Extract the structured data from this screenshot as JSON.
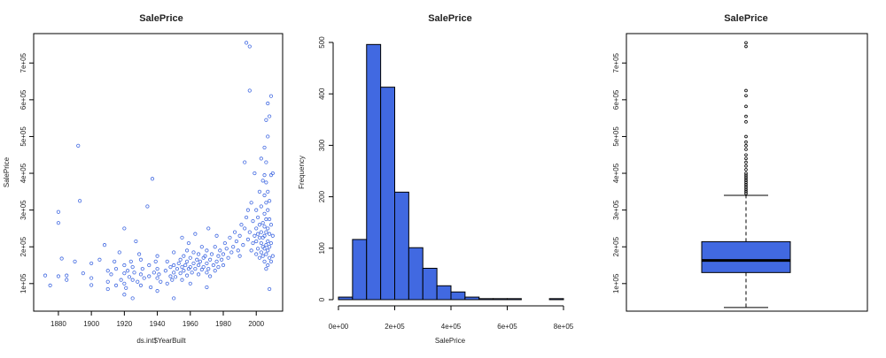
{
  "chart_data": [
    {
      "type": "scatter",
      "title": "SalePrice",
      "xlabel": "ds.int$YearBuilt",
      "ylabel": "SalePrice",
      "xlim": [
        1865,
        2016
      ],
      "ylim": [
        25000,
        780000
      ],
      "x_ticks": [
        1880,
        1900,
        1920,
        1940,
        1960,
        1980,
        2000
      ],
      "x_tick_labels": [
        "1880",
        "1900",
        "1920",
        "1940",
        "1960",
        "1980",
        "2000"
      ],
      "y_ticks": [
        100000,
        200000,
        300000,
        400000,
        500000,
        600000,
        700000
      ],
      "y_tick_labels": [
        "1e+05",
        "2e+05",
        "3e+05",
        "4e+05",
        "5e+05",
        "6e+05",
        "7e+05"
      ],
      "point_color": "#4169e1",
      "marker": "open-circle",
      "points": [
        [
          1872,
          122000
        ],
        [
          1875,
          95000
        ],
        [
          1880,
          265000
        ],
        [
          1880,
          295000
        ],
        [
          1880,
          120000
        ],
        [
          1882,
          168000
        ],
        [
          1885,
          110000
        ],
        [
          1885,
          122000
        ],
        [
          1890,
          160000
        ],
        [
          1892,
          475000
        ],
        [
          1893,
          325000
        ],
        [
          1895,
          128000
        ],
        [
          1900,
          96000
        ],
        [
          1900,
          115000
        ],
        [
          1900,
          155000
        ],
        [
          1905,
          165000
        ],
        [
          1908,
          205000
        ],
        [
          1910,
          85000
        ],
        [
          1910,
          105000
        ],
        [
          1910,
          135000
        ],
        [
          1912,
          125000
        ],
        [
          1914,
          160000
        ],
        [
          1915,
          95000
        ],
        [
          1915,
          140000
        ],
        [
          1917,
          185000
        ],
        [
          1918,
          110000
        ],
        [
          1920,
          70000
        ],
        [
          1920,
          100000
        ],
        [
          1920,
          128000
        ],
        [
          1920,
          150000
        ],
        [
          1920,
          250000
        ],
        [
          1921,
          88000
        ],
        [
          1922,
          135000
        ],
        [
          1923,
          118000
        ],
        [
          1924,
          160000
        ],
        [
          1925,
          60000
        ],
        [
          1925,
          110000
        ],
        [
          1925,
          145000
        ],
        [
          1926,
          130000
        ],
        [
          1927,
          215000
        ],
        [
          1928,
          105000
        ],
        [
          1929,
          180000
        ],
        [
          1930,
          95000
        ],
        [
          1930,
          125000
        ],
        [
          1930,
          165000
        ],
        [
          1931,
          140000
        ],
        [
          1932,
          115000
        ],
        [
          1934,
          310000
        ],
        [
          1935,
          120000
        ],
        [
          1935,
          150000
        ],
        [
          1936,
          90000
        ],
        [
          1937,
          385000
        ],
        [
          1938,
          130000
        ],
        [
          1939,
          160000
        ],
        [
          1940,
          80000
        ],
        [
          1940,
          115000
        ],
        [
          1940,
          140000
        ],
        [
          1940,
          175000
        ],
        [
          1941,
          125000
        ],
        [
          1942,
          105000
        ],
        [
          1945,
          135000
        ],
        [
          1946,
          100000
        ],
        [
          1946,
          160000
        ],
        [
          1948,
          120000
        ],
        [
          1948,
          145000
        ],
        [
          1949,
          110000
        ],
        [
          1950,
          60000
        ],
        [
          1950,
          130000
        ],
        [
          1950,
          150000
        ],
        [
          1950,
          185000
        ],
        [
          1951,
          118000
        ],
        [
          1952,
          140000
        ],
        [
          1953,
          155000
        ],
        [
          1954,
          128000
        ],
        [
          1954,
          165000
        ],
        [
          1955,
          110000
        ],
        [
          1955,
          145000
        ],
        [
          1955,
          225000
        ],
        [
          1956,
          135000
        ],
        [
          1956,
          175000
        ],
        [
          1957,
          150000
        ],
        [
          1958,
          122000
        ],
        [
          1958,
          160000
        ],
        [
          1958,
          190000
        ],
        [
          1959,
          140000
        ],
        [
          1959,
          210000
        ],
        [
          1960,
          100000
        ],
        [
          1960,
          145000
        ],
        [
          1960,
          170000
        ],
        [
          1961,
          130000
        ],
        [
          1962,
          155000
        ],
        [
          1962,
          185000
        ],
        [
          1963,
          140000
        ],
        [
          1963,
          235000
        ],
        [
          1964,
          165000
        ],
        [
          1965,
          125000
        ],
        [
          1965,
          150000
        ],
        [
          1965,
          180000
        ],
        [
          1966,
          160000
        ],
        [
          1967,
          138000
        ],
        [
          1967,
          200000
        ],
        [
          1968,
          170000
        ],
        [
          1968,
          145000
        ],
        [
          1969,
          175000
        ],
        [
          1970,
          90000
        ],
        [
          1970,
          130000
        ],
        [
          1970,
          155000
        ],
        [
          1970,
          190000
        ],
        [
          1971,
          140000
        ],
        [
          1971,
          250000
        ],
        [
          1972,
          165000
        ],
        [
          1972,
          120000
        ],
        [
          1973,
          180000
        ],
        [
          1974,
          150000
        ],
        [
          1975,
          135000
        ],
        [
          1975,
          200000
        ],
        [
          1976,
          160000
        ],
        [
          1976,
          230000
        ],
        [
          1977,
          175000
        ],
        [
          1977,
          145000
        ],
        [
          1978,
          190000
        ],
        [
          1979,
          165000
        ],
        [
          1980,
          150000
        ],
        [
          1980,
          180000
        ],
        [
          1981,
          210000
        ],
        [
          1982,
          195000
        ],
        [
          1983,
          170000
        ],
        [
          1984,
          225000
        ],
        [
          1985,
          185000
        ],
        [
          1986,
          200000
        ],
        [
          1987,
          240000
        ],
        [
          1988,
          215000
        ],
        [
          1989,
          190000
        ],
        [
          1990,
          175000
        ],
        [
          1990,
          230000
        ],
        [
          1991,
          260000
        ],
        [
          1992,
          205000
        ],
        [
          1993,
          250000
        ],
        [
          1993,
          430000
        ],
        [
          1994,
          280000
        ],
        [
          1994,
          755000
        ],
        [
          1995,
          220000
        ],
        [
          1995,
          300000
        ],
        [
          1996,
          625000
        ],
        [
          1996,
          745000
        ],
        [
          1996,
          240000
        ],
        [
          1997,
          190000
        ],
        [
          1997,
          320000
        ],
        [
          1998,
          210000
        ],
        [
          1998,
          270000
        ],
        [
          1999,
          230000
        ],
        [
          1999,
          400000
        ],
        [
          2000,
          180000
        ],
        [
          2000,
          215000
        ],
        [
          2000,
          250000
        ],
        [
          2000,
          300000
        ],
        [
          2001,
          195000
        ],
        [
          2001,
          235000
        ],
        [
          2001,
          280000
        ],
        [
          2002,
          170000
        ],
        [
          2002,
          225000
        ],
        [
          2002,
          260000
        ],
        [
          2002,
          350000
        ],
        [
          2003,
          185000
        ],
        [
          2003,
          210000
        ],
        [
          2003,
          240000
        ],
        [
          2003,
          310000
        ],
        [
          2003,
          440000
        ],
        [
          2004,
          175000
        ],
        [
          2004,
          200000
        ],
        [
          2004,
          225000
        ],
        [
          2004,
          265000
        ],
        [
          2004,
          380000
        ],
        [
          2005,
          160000
        ],
        [
          2005,
          195000
        ],
        [
          2005,
          230000
        ],
        [
          2005,
          255000
        ],
        [
          2005,
          290000
        ],
        [
          2005,
          340000
        ],
        [
          2005,
          395000
        ],
        [
          2005,
          470000
        ],
        [
          2006,
          140000
        ],
        [
          2006,
          180000
        ],
        [
          2006,
          205000
        ],
        [
          2006,
          240000
        ],
        [
          2006,
          275000
        ],
        [
          2006,
          320000
        ],
        [
          2006,
          375000
        ],
        [
          2006,
          430000
        ],
        [
          2006,
          545000
        ],
        [
          2007,
          150000
        ],
        [
          2007,
          190000
        ],
        [
          2007,
          215000
        ],
        [
          2007,
          250000
        ],
        [
          2007,
          300000
        ],
        [
          2007,
          350000
        ],
        [
          2007,
          500000
        ],
        [
          2007,
          590000
        ],
        [
          2008,
          85000
        ],
        [
          2008,
          170000
        ],
        [
          2008,
          200000
        ],
        [
          2008,
          235000
        ],
        [
          2008,
          275000
        ],
        [
          2008,
          325000
        ],
        [
          2008,
          555000
        ],
        [
          2009,
          160000
        ],
        [
          2009,
          210000
        ],
        [
          2009,
          260000
        ],
        [
          2009,
          395000
        ],
        [
          2009,
          610000
        ],
        [
          2010,
          175000
        ],
        [
          2010,
          230000
        ],
        [
          2010,
          400000
        ]
      ]
    },
    {
      "type": "bar",
      "subtype": "histogram",
      "title": "SalePrice",
      "xlabel": "SalePrice",
      "ylabel": "Frequency",
      "bin_width": 50000,
      "bin_edges": [
        0,
        50000,
        100000,
        150000,
        200000,
        250000,
        300000,
        350000,
        400000,
        450000,
        500000,
        550000,
        600000,
        650000,
        700000,
        750000,
        800000
      ],
      "values": [
        5,
        117,
        496,
        413,
        209,
        101,
        61,
        27,
        15,
        5,
        2,
        2,
        2,
        0,
        0,
        2
      ],
      "xlim": [
        0,
        800000
      ],
      "ylim": [
        0,
        500
      ],
      "x_ticks": [
        0,
        200000,
        400000,
        600000,
        800000
      ],
      "x_tick_labels": [
        "0e+00",
        "2e+05",
        "4e+05",
        "6e+05",
        "8e+05"
      ],
      "y_ticks": [
        0,
        100,
        200,
        300,
        400,
        500
      ],
      "y_tick_labels": [
        "0",
        "100",
        "200",
        "300",
        "400",
        "500"
      ],
      "bar_color": "#4169e1"
    },
    {
      "type": "box",
      "title": "SalePrice",
      "ylim": [
        25000,
        780000
      ],
      "y_ticks": [
        100000,
        200000,
        300000,
        400000,
        500000,
        600000,
        700000
      ],
      "y_tick_labels": [
        "1e+05",
        "2e+05",
        "3e+05",
        "4e+05",
        "5e+05",
        "6e+05",
        "7e+05"
      ],
      "min": 34900,
      "q1": 129975,
      "median": 163000,
      "q3": 214000,
      "whisker_high": 340000,
      "outliers": [
        345000,
        350000,
        355000,
        360000,
        365000,
        370000,
        375000,
        380000,
        385000,
        390000,
        395000,
        400000,
        410000,
        420000,
        430000,
        440000,
        450000,
        465000,
        475000,
        485000,
        500000,
        540000,
        555000,
        582000,
        611000,
        625000,
        745000,
        755000
      ],
      "box_color": "#4169e1"
    }
  ]
}
